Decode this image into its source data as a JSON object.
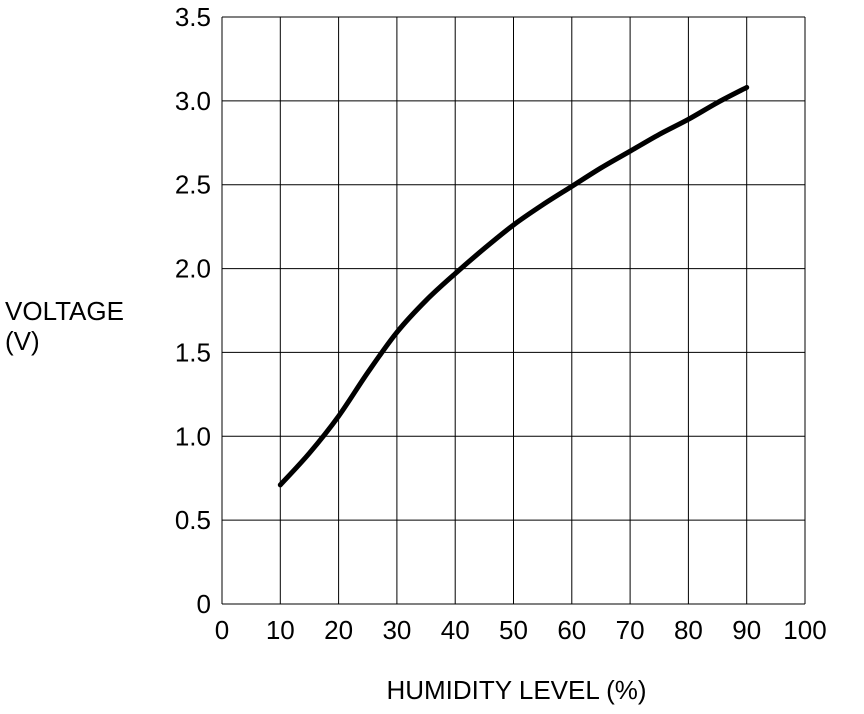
{
  "chart_data": {
    "type": "line",
    "title": "",
    "xlabel": "HUMIDITY LEVEL (%)",
    "ylabel_lines": [
      "VOLTAGE",
      "(V)"
    ],
    "xlim": [
      0,
      100
    ],
    "ylim": [
      0,
      3.5
    ],
    "x_ticks": [
      0,
      10,
      20,
      30,
      40,
      50,
      60,
      70,
      80,
      90,
      100
    ],
    "x_tick_labels": [
      "0",
      "10",
      "20",
      "30",
      "40",
      "50",
      "60",
      "70",
      "80",
      "90",
      "100"
    ],
    "y_ticks": [
      0,
      0.5,
      1.0,
      1.5,
      2.0,
      2.5,
      3.0,
      3.5
    ],
    "y_tick_labels": [
      "0",
      "0.5",
      "1.0",
      "1.5",
      "2.0",
      "2.5",
      "3.0",
      "3.5"
    ],
    "grid": true,
    "legend": "none",
    "line_color": "#000000",
    "series": [
      {
        "x": [
          10,
          15,
          20,
          25,
          30,
          35,
          40,
          45,
          50,
          55,
          60,
          65,
          70,
          75,
          80,
          85,
          90
        ],
        "values": [
          0.71,
          0.9,
          1.12,
          1.38,
          1.62,
          1.81,
          1.97,
          2.12,
          2.26,
          2.38,
          2.49,
          2.6,
          2.7,
          2.8,
          2.89,
          2.99,
          3.08
        ]
      }
    ]
  }
}
